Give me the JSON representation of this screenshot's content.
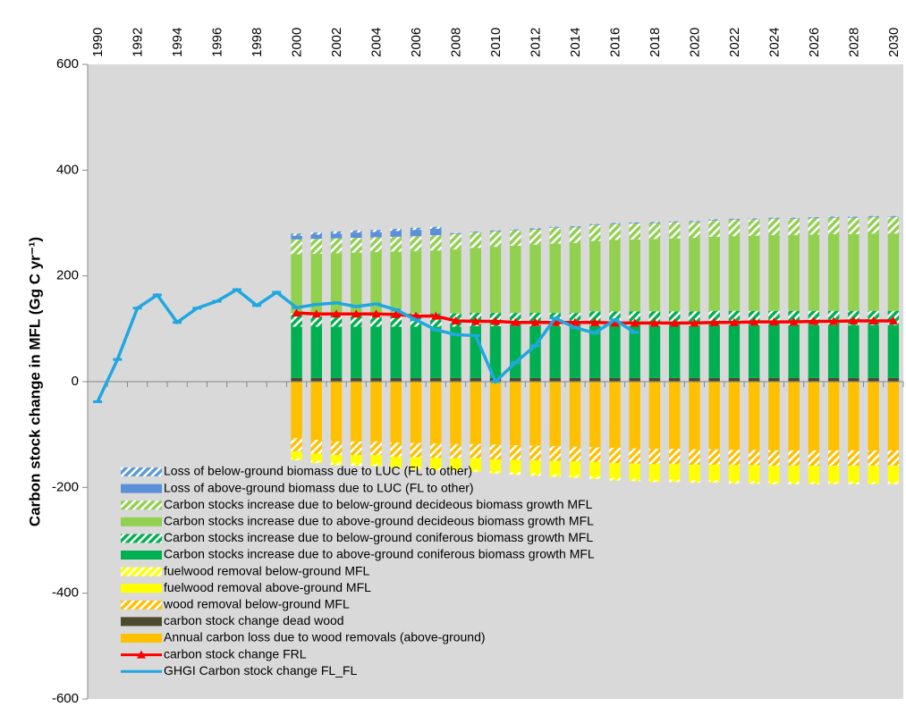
{
  "chart_data": {
    "type": "bar",
    "y_label": "Carbon stock change in MFL (Gg C yr⁻¹)",
    "categories": [
      "1990",
      null,
      "1992",
      null,
      "1994",
      null,
      "1996",
      null,
      "1998",
      null,
      "2000",
      null,
      "2002",
      null,
      "2004",
      null,
      "2006",
      null,
      "2008",
      null,
      "2010",
      null,
      "2012",
      null,
      "2014",
      null,
      "2016",
      null,
      "2018",
      null,
      "2020",
      null,
      "2022",
      null,
      "2024",
      null,
      "2026",
      null,
      "2028",
      null,
      "2030"
    ],
    "ylim": [
      -600,
      600
    ],
    "yticks": [
      -600,
      -400,
      -200,
      0,
      200,
      400,
      600
    ],
    "grid": false,
    "series": [
      {
        "name": "Loss of below-ground biomass due to LUC (FL to other)",
        "type": "bar",
        "hatched": true,
        "color": "#5b9bd5",
        "values": [
          null,
          null,
          null,
          null,
          null,
          null,
          null,
          null,
          null,
          null,
          4,
          4,
          4,
          4,
          4,
          4,
          4,
          4,
          1,
          1,
          1,
          1,
          1,
          1,
          1,
          1,
          1,
          1,
          1,
          1,
          1,
          1,
          1,
          1,
          1,
          1,
          1,
          1,
          1,
          1,
          1
        ]
      },
      {
        "name": "Loss of above-ground biomass due to LUC (FL to other)",
        "type": "bar",
        "hatched": false,
        "color": "#5b8fd8",
        "values": [
          null,
          null,
          null,
          null,
          null,
          null,
          null,
          null,
          null,
          null,
          7,
          8,
          9,
          10,
          10,
          11,
          12,
          12,
          1,
          1,
          1,
          1,
          1,
          1,
          1,
          1,
          1,
          1,
          1,
          1,
          1,
          1,
          1,
          1,
          1,
          1,
          1,
          1,
          1,
          1,
          1
        ]
      },
      {
        "name": "Carbon stocks increase due to below-ground decideous biomass growth MFL",
        "type": "bar",
        "hatched": true,
        "color": "#92d050",
        "values": [
          null,
          null,
          null,
          null,
          null,
          null,
          null,
          null,
          null,
          null,
          28,
          28,
          28,
          28,
          28,
          28,
          28,
          29,
          29,
          29,
          29,
          29,
          29,
          30,
          30,
          30,
          30,
          30,
          30,
          30,
          30,
          31,
          31,
          31,
          31,
          31,
          31,
          31,
          31,
          31,
          31
        ]
      },
      {
        "name": "Carbon stocks increase due to above-ground decideous biomass growth MFL",
        "type": "bar",
        "hatched": false,
        "color": "#92d050",
        "values": [
          null,
          null,
          null,
          null,
          null,
          null,
          null,
          null,
          null,
          null,
          112,
          113,
          114,
          115,
          116,
          117,
          118,
          119,
          121,
          123,
          125,
          127,
          129,
          131,
          132,
          133,
          135,
          136,
          137,
          138,
          139,
          140,
          141,
          142,
          143,
          143,
          144,
          145,
          145,
          146,
          146
        ]
      },
      {
        "name": "Carbon stocks increase due to below-ground coniferous biomass growth MFL",
        "type": "bar",
        "hatched": true,
        "color": "#00b050",
        "values": [
          null,
          null,
          null,
          null,
          null,
          null,
          null,
          null,
          null,
          null,
          25,
          25,
          25,
          25,
          25,
          25,
          25,
          25,
          25,
          25,
          25,
          25,
          25,
          25,
          25,
          27,
          27,
          27,
          27,
          27,
          27,
          27,
          27,
          27,
          27,
          27,
          27,
          27,
          27,
          27,
          27
        ]
      },
      {
        "name": "Carbon stocks increase due to above-ground coniferous biomass growth MFL",
        "type": "bar",
        "hatched": false,
        "color": "#00b050",
        "values": [
          null,
          null,
          null,
          null,
          null,
          null,
          null,
          null,
          null,
          null,
          97,
          97,
          97,
          97,
          97,
          97,
          97,
          97,
          97,
          98,
          98,
          98,
          98,
          98,
          98,
          99,
          99,
          99,
          99,
          99,
          99,
          100,
          100,
          100,
          100,
          100,
          100,
          100,
          100,
          100,
          100
        ]
      },
      {
        "name": "fuelwood removal below-ground MFL",
        "type": "bar",
        "hatched": true,
        "color": "#ffff00",
        "values": [
          null,
          null,
          null,
          null,
          null,
          null,
          null,
          null,
          null,
          null,
          -5,
          -5,
          -5,
          -5,
          -5,
          -5,
          -5,
          -5,
          -5,
          -5,
          -5,
          -5,
          -5,
          -5,
          -5,
          -5,
          -5,
          -5,
          -5,
          -5,
          -5,
          -5,
          -5,
          -5,
          -5,
          -5,
          -5,
          -5,
          -5,
          -5,
          -5
        ]
      },
      {
        "name": "fuelwood removal above-ground MFL",
        "type": "bar",
        "hatched": false,
        "color": "#ffff00",
        "values": [
          null,
          null,
          null,
          null,
          null,
          null,
          null,
          null,
          null,
          null,
          -12,
          -13,
          -14,
          -15,
          -16,
          -17,
          -18,
          -19,
          -20,
          -21,
          -22,
          -23,
          -24,
          -25,
          -26,
          -27,
          -28,
          -28,
          -29,
          -29,
          -29,
          -29,
          -30,
          -30,
          -30,
          -30,
          -30,
          -30,
          -30,
          -30,
          -30
        ]
      },
      {
        "name": "wood removal below-ground MFL",
        "type": "bar",
        "hatched": true,
        "color": "#ffc000",
        "values": [
          null,
          null,
          null,
          null,
          null,
          null,
          null,
          null,
          null,
          null,
          -25,
          -26,
          -26,
          -26,
          -26,
          -27,
          -27,
          -27,
          -27,
          -27,
          -28,
          -28,
          -28,
          -28,
          -28,
          -28,
          -29,
          -29,
          -29,
          -29,
          -29,
          -29,
          -29,
          -29,
          -29,
          -29,
          -29,
          -29,
          -29,
          -29,
          -29
        ]
      },
      {
        "name": "carbon stock change dead wood",
        "type": "bar",
        "hatched": false,
        "color": "#4a4a30",
        "values": [
          null,
          null,
          null,
          null,
          null,
          null,
          null,
          null,
          null,
          null,
          7,
          7,
          7,
          7,
          7,
          7,
          7,
          7,
          7,
          7,
          7,
          7,
          7,
          7,
          7,
          7,
          7,
          7,
          7,
          7,
          7,
          7,
          7,
          7,
          7,
          7,
          7,
          7,
          7,
          7,
          7
        ]
      },
      {
        "name": "Annual carbon loss due to wood removals (above-ground)",
        "type": "bar",
        "hatched": false,
        "color": "#ffc000",
        "values": [
          null,
          null,
          null,
          null,
          null,
          null,
          null,
          null,
          null,
          null,
          -107,
          -110,
          -113,
          -113,
          -113,
          -115,
          -116,
          -117,
          -118,
          -118,
          -119,
          -120,
          -121,
          -122,
          -123,
          -124,
          -125,
          -126,
          -127,
          -127,
          -128,
          -128,
          -129,
          -129,
          -130,
          -130,
          -130,
          -130,
          -130,
          -130,
          -130
        ]
      },
      {
        "name": "carbon stock change FRL",
        "type": "line",
        "marker": "triangle",
        "color": "#ff0000",
        "values": [
          null,
          null,
          null,
          null,
          null,
          null,
          null,
          null,
          null,
          null,
          130,
          128,
          128,
          128,
          128,
          127,
          124,
          124,
          115,
          114,
          114,
          112,
          112,
          112,
          112,
          112,
          111,
          111,
          111,
          111,
          111,
          112,
          112,
          113,
          113,
          113,
          114,
          114,
          115,
          115,
          115
        ]
      },
      {
        "name": "GHGI Carbon stock change FL_FL",
        "type": "line",
        "marker": "dash",
        "color": "#1fa7e0",
        "values": [
          -38,
          42,
          139,
          164,
          112,
          139,
          152,
          174,
          144,
          169,
          140,
          146,
          149,
          142,
          147,
          136,
          117,
          98,
          89,
          87,
          0,
          36,
          68,
          120,
          102,
          92,
          117,
          93,
          null,
          null,
          null,
          null,
          null,
          null,
          null,
          null,
          null,
          null,
          null,
          null,
          null
        ]
      }
    ]
  }
}
